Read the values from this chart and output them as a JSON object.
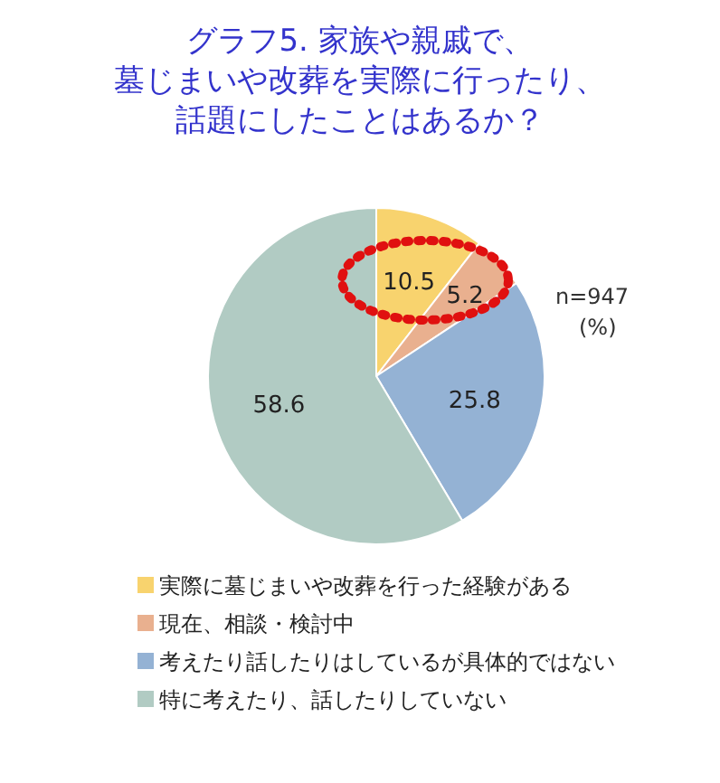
{
  "chart_data": {
    "type": "pie",
    "title": "グラフ5. 家族や親戚で、墓じまいや改葬を実際に行ったり、話題にしたことはあるか？",
    "categories": [
      "実際に墓じまいや改葬を行った経験がある",
      "現在、相談・検討中",
      "考えたり話したりはしているが具体的ではない",
      "特に考えたり、話したりしていない"
    ],
    "values": [
      10.5,
      5.2,
      25.8,
      58.6
    ],
    "colors": [
      "#f8d36e",
      "#e9b08f",
      "#94b2d4",
      "#b1cbc3"
    ],
    "data_labels": true,
    "legend": "bottom",
    "annotations": [
      "n=947",
      "(%)"
    ]
  }
}
